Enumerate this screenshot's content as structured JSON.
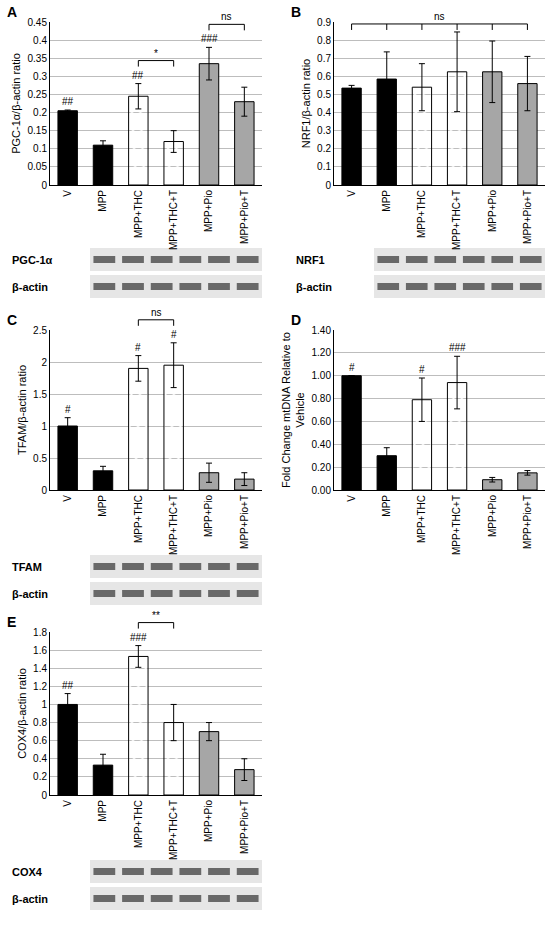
{
  "chart_data": [
    {
      "type": "bar",
      "title": "A",
      "categories": [
        "V",
        "MPP",
        "MPP+THC",
        "MPP+THC+T",
        "MPP+Pio",
        "MPP+Pio+T"
      ],
      "values": [
        0.205,
        0.11,
        0.245,
        0.12,
        0.335,
        0.23
      ],
      "errors": [
        0.002,
        0.012,
        0.035,
        0.03,
        0.045,
        0.04
      ],
      "colors": [
        "#000000",
        "#000000",
        "#ffffff",
        "#ffffff",
        "#a6a6a6",
        "#a6a6a6"
      ],
      "ylabel": [
        "PGC-1α/β-actin ratio"
      ],
      "ylim": [
        0,
        0.45
      ],
      "yticks": [
        0,
        0.05,
        0.1,
        0.15,
        0.2,
        0.25,
        0.3,
        0.35,
        0.4,
        0.45
      ],
      "grid": true,
      "annotations": [
        {
          "text": "##",
          "at": 0
        },
        {
          "text": "##",
          "at": 2
        },
        {
          "text": "###",
          "at": 4
        }
      ],
      "brackets": [
        {
          "text": "*",
          "from": 2,
          "to": 3
        },
        {
          "text": "ns",
          "from": 4,
          "to": 5
        }
      ],
      "blot": [
        "PGC-1α",
        "β-actin"
      ]
    },
    {
      "type": "bar",
      "title": "B",
      "categories": [
        "V",
        "MPP",
        "MPP+THC",
        "MPP+THC+T",
        "MPP+Pio",
        "MPP+Pio+T"
      ],
      "values": [
        0.535,
        0.585,
        0.54,
        0.625,
        0.625,
        0.56
      ],
      "errors": [
        0.015,
        0.15,
        0.13,
        0.22,
        0.17,
        0.15
      ],
      "colors": [
        "#000000",
        "#000000",
        "#ffffff",
        "#ffffff",
        "#a6a6a6",
        "#a6a6a6"
      ],
      "ylabel": [
        "NRF1/β-actin ratio"
      ],
      "ylim": [
        0,
        0.9
      ],
      "yticks": [
        0,
        0.1,
        0.2,
        0.3,
        0.4,
        0.5,
        0.6,
        0.7,
        0.8,
        0.9
      ],
      "grid": true,
      "annotations": [],
      "brackets": [
        {
          "text": "ns",
          "from": 0,
          "to": 5
        }
      ],
      "blot": [
        "NRF1",
        "β-actin"
      ]
    },
    {
      "type": "bar",
      "title": "C",
      "categories": [
        "V",
        "MPP",
        "MPP+THC",
        "MPP+THC+T",
        "MPP+Pio",
        "MPP+Pio+T"
      ],
      "values": [
        1.0,
        0.3,
        1.9,
        1.95,
        0.27,
        0.17
      ],
      "errors": [
        0.13,
        0.07,
        0.2,
        0.35,
        0.15,
        0.1
      ],
      "colors": [
        "#000000",
        "#000000",
        "#ffffff",
        "#ffffff",
        "#a6a6a6",
        "#a6a6a6"
      ],
      "ylabel": [
        "TFAM/β-actin ratio"
      ],
      "ylim": [
        0,
        2.5
      ],
      "yticks": [
        0,
        0.5,
        1,
        1.5,
        2,
        2.5
      ],
      "grid": true,
      "annotations": [
        {
          "text": "#",
          "at": 0
        },
        {
          "text": "#",
          "at": 2
        },
        {
          "text": "#",
          "at": 3
        }
      ],
      "brackets": [
        {
          "text": "ns",
          "from": 2,
          "to": 3
        }
      ],
      "blot": [
        "TFAM",
        "β-actin"
      ]
    },
    {
      "type": "bar",
      "title": "D",
      "categories": [
        "V",
        "MPP",
        "MPP+THC",
        "MPP+THC+T",
        "MPP+Pio",
        "MPP+Pio+T"
      ],
      "values": [
        1.0,
        0.3,
        0.79,
        0.94,
        0.09,
        0.15
      ],
      "errors": [
        0,
        0.07,
        0.19,
        0.23,
        0.02,
        0.02
      ],
      "colors": [
        "#000000",
        "#000000",
        "#ffffff",
        "#ffffff",
        "#a6a6a6",
        "#a6a6a6"
      ],
      "ylabel": [
        "Fold Change mtDNA Relative to",
        "Vehicle"
      ],
      "ylim": [
        0,
        1.4
      ],
      "yticks": [
        {
          "value": 0,
          "label": "0.00"
        },
        {
          "value": 0.2,
          "label": "0.20"
        },
        {
          "value": 0.4,
          "label": "0.40"
        },
        {
          "value": 0.6,
          "label": "0.60"
        },
        {
          "value": 0.8,
          "label": "0.80"
        },
        {
          "value": 1.0,
          "label": "1.00"
        },
        {
          "value": 1.2,
          "label": "1.20"
        },
        {
          "value": 1.4,
          "label": "1.40"
        }
      ],
      "grid": true,
      "annotations": [
        {
          "text": "#",
          "at": 0
        },
        {
          "text": "#",
          "at": 2
        },
        {
          "text": "###",
          "at": 3
        }
      ],
      "brackets": []
    },
    {
      "type": "bar",
      "title": "E",
      "categories": [
        "V",
        "MPP",
        "MPP+THC",
        "MPP+THC+T",
        "MPP+Pio",
        "MPP+Pio+T"
      ],
      "values": [
        1.0,
        0.33,
        1.53,
        0.8,
        0.7,
        0.28
      ],
      "errors": [
        0.12,
        0.12,
        0.12,
        0.2,
        0.1,
        0.12
      ],
      "colors": [
        "#000000",
        "#000000",
        "#ffffff",
        "#ffffff",
        "#a6a6a6",
        "#a6a6a6"
      ],
      "ylabel": [
        "COX4/β-actin ratio"
      ],
      "ylim": [
        0,
        1.8
      ],
      "yticks": [
        0,
        0.2,
        0.4,
        0.6,
        0.8,
        1,
        1.2,
        1.4,
        1.6,
        1.8
      ],
      "grid": true,
      "annotations": [
        {
          "text": "##",
          "at": 0
        },
        {
          "text": "###",
          "at": 2
        }
      ],
      "brackets": [
        {
          "text": "**",
          "from": 2,
          "to": 3
        }
      ],
      "blot": [
        "COX4",
        "β-actin"
      ]
    }
  ]
}
